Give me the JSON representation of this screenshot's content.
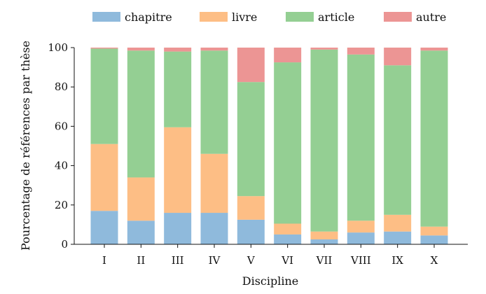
{
  "chart_data": {
    "type": "bar",
    "stacked": true,
    "categories": [
      "I",
      "II",
      "III",
      "IV",
      "V",
      "VI",
      "VII",
      "VIII",
      "IX",
      "X"
    ],
    "series": [
      {
        "name": "chapitre",
        "color": "#8fbadc",
        "values": [
          17,
          12,
          16,
          16,
          12.5,
          5,
          2.5,
          6,
          6.5,
          4.5
        ]
      },
      {
        "name": "livre",
        "color": "#fdbe85",
        "values": [
          34,
          22,
          43.5,
          30,
          12,
          5.5,
          4,
          6,
          8.5,
          4.5
        ]
      },
      {
        "name": "article",
        "color": "#94cf93",
        "values": [
          48.5,
          64.5,
          38.5,
          52.5,
          58,
          82,
          92.5,
          84.5,
          76,
          89.5
        ]
      },
      {
        "name": "autre",
        "color": "#ec9594",
        "values": [
          0.5,
          1.5,
          2,
          1.5,
          17.5,
          7.5,
          1,
          3.5,
          9,
          1.5
        ]
      }
    ],
    "xlabel": "Discipline",
    "ylabel": "Pourcentage de références par thèse",
    "ylim": [
      0,
      100
    ],
    "yticks": [
      0,
      20,
      40,
      60,
      80,
      100
    ],
    "grid": false,
    "legend_position": "top"
  }
}
